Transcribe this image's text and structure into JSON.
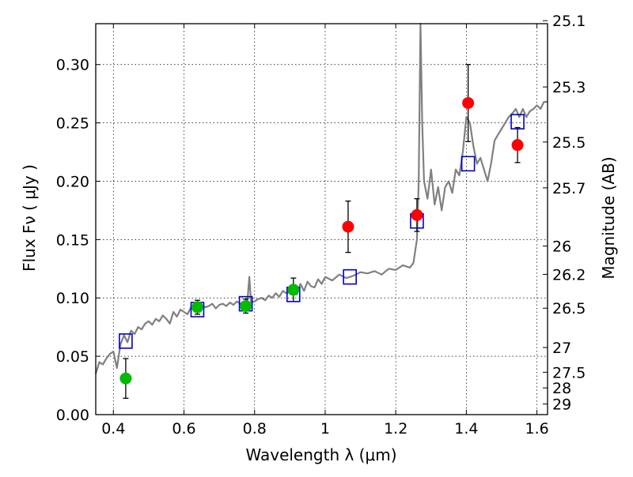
{
  "chart_data": {
    "type": "scatter",
    "xlabel": "Wavelength  λ (μm)",
    "ylabel": "Flux  Fν  ( μJy )",
    "ylabel_right": "Magnitude (AB)",
    "xlim": [
      0.35,
      1.63
    ],
    "ylim": [
      0.0,
      0.335
    ],
    "grid": true,
    "x_ticks": [
      {
        "value": 0.4,
        "label": "0.4"
      },
      {
        "value": 0.6,
        "label": "0.6"
      },
      {
        "value": 0.8,
        "label": "0.8"
      },
      {
        "value": 1.0,
        "label": "1"
      },
      {
        "value": 1.2,
        "label": "1.2"
      },
      {
        "value": 1.4,
        "label": "1.4"
      },
      {
        "value": 1.6,
        "label": "1.6"
      }
    ],
    "y_ticks": [
      {
        "value": 0.0,
        "label": "0.00"
      },
      {
        "value": 0.05,
        "label": "0.05"
      },
      {
        "value": 0.1,
        "label": "0.10"
      },
      {
        "value": 0.15,
        "label": "0.15"
      },
      {
        "value": 0.2,
        "label": "0.20"
      },
      {
        "value": 0.25,
        "label": "0.25"
      },
      {
        "value": 0.3,
        "label": "0.30"
      }
    ],
    "right_ticks": [
      {
        "label": "25.1",
        "flux": 0.3376
      },
      {
        "label": "25.3",
        "flux": 0.2808
      },
      {
        "label": "25.5",
        "flux": 0.2336
      },
      {
        "label": "25.7",
        "flux": 0.1943
      },
      {
        "label": "26",
        "flux": 0.1445
      },
      {
        "label": "26.2",
        "flux": 0.1202
      },
      {
        "label": "26.5",
        "flux": 0.0912
      },
      {
        "label": "27",
        "flux": 0.0575
      },
      {
        "label": "27.5",
        "flux": 0.0363
      },
      {
        "label": "28",
        "flux": 0.0229
      },
      {
        "label": "29",
        "flux": 0.0091
      }
    ],
    "colors": {
      "spectrum": "#808080",
      "model_points": "#0000cc",
      "observed_green": "#00bb00",
      "observed_red": "#ff0000",
      "errorbar": "#000000"
    },
    "series": [
      {
        "kind": "spectrum",
        "x": [
          0.35,
          0.36,
          0.37,
          0.38,
          0.39,
          0.4,
          0.41,
          0.42,
          0.43,
          0.44,
          0.45,
          0.46,
          0.47,
          0.48,
          0.49,
          0.5,
          0.51,
          0.52,
          0.53,
          0.54,
          0.55,
          0.56,
          0.57,
          0.58,
          0.59,
          0.6,
          0.61,
          0.62,
          0.63,
          0.64,
          0.65,
          0.66,
          0.67,
          0.68,
          0.69,
          0.7,
          0.71,
          0.72,
          0.73,
          0.74,
          0.75,
          0.76,
          0.77,
          0.78,
          0.785,
          0.79,
          0.8,
          0.81,
          0.82,
          0.83,
          0.84,
          0.85,
          0.86,
          0.87,
          0.88,
          0.89,
          0.9,
          0.91,
          0.92,
          0.93,
          0.94,
          0.95,
          0.96,
          0.97,
          0.98,
          0.99,
          1.0,
          1.02,
          1.04,
          1.06,
          1.08,
          1.1,
          1.12,
          1.14,
          1.16,
          1.18,
          1.2,
          1.22,
          1.24,
          1.25,
          1.26,
          1.265,
          1.27,
          1.275,
          1.28,
          1.29,
          1.3,
          1.31,
          1.32,
          1.33,
          1.34,
          1.35,
          1.36,
          1.37,
          1.38,
          1.39,
          1.4,
          1.41,
          1.42,
          1.43,
          1.44,
          1.45,
          1.46,
          1.47,
          1.48,
          1.49,
          1.5,
          1.51,
          1.52,
          1.53,
          1.54,
          1.55,
          1.56,
          1.57,
          1.58,
          1.59,
          1.6,
          1.61,
          1.62,
          1.63
        ],
        "y": [
          0.035,
          0.045,
          0.043,
          0.048,
          0.052,
          0.054,
          0.04,
          0.06,
          0.068,
          0.062,
          0.072,
          0.069,
          0.075,
          0.073,
          0.078,
          0.08,
          0.077,
          0.082,
          0.08,
          0.085,
          0.082,
          0.078,
          0.088,
          0.084,
          0.09,
          0.088,
          0.086,
          0.092,
          0.09,
          0.093,
          0.094,
          0.092,
          0.093,
          0.095,
          0.091,
          0.094,
          0.095,
          0.093,
          0.096,
          0.094,
          0.097,
          0.095,
          0.096,
          0.098,
          0.118,
          0.096,
          0.097,
          0.099,
          0.1,
          0.098,
          0.102,
          0.1,
          0.104,
          0.101,
          0.106,
          0.104,
          0.105,
          0.108,
          0.103,
          0.112,
          0.106,
          0.114,
          0.11,
          0.109,
          0.116,
          0.112,
          0.118,
          0.115,
          0.12,
          0.117,
          0.119,
          0.122,
          0.121,
          0.123,
          0.12,
          0.125,
          0.124,
          0.128,
          0.126,
          0.13,
          0.15,
          0.2,
          0.34,
          0.25,
          0.2,
          0.185,
          0.21,
          0.18,
          0.195,
          0.175,
          0.195,
          0.2,
          0.19,
          0.21,
          0.205,
          0.225,
          0.255,
          0.25,
          0.23,
          0.215,
          0.22,
          0.21,
          0.2,
          0.215,
          0.235,
          0.24,
          0.245,
          0.25,
          0.255,
          0.258,
          0.262,
          0.255,
          0.262,
          0.255,
          0.26,
          0.262,
          0.265,
          0.262,
          0.268,
          0.268
        ]
      },
      {
        "kind": "model",
        "x": [
          0.435,
          0.638,
          0.775,
          0.91,
          1.07,
          1.26,
          1.405,
          1.545
        ],
        "y": [
          0.063,
          0.09,
          0.095,
          0.103,
          0.118,
          0.166,
          0.215,
          0.251
        ]
      },
      {
        "kind": "observed-green",
        "x": [
          0.435,
          0.638,
          0.775,
          0.91
        ],
        "y": [
          0.031,
          0.092,
          0.093,
          0.107
        ],
        "err": [
          0.017,
          0.006,
          0.006,
          0.01
        ]
      },
      {
        "kind": "observed-red",
        "x": [
          1.065,
          1.26,
          1.405,
          1.545
        ],
        "y": [
          0.161,
          0.171,
          0.267,
          0.231
        ],
        "err": [
          0.022,
          0.014,
          0.033,
          0.015
        ]
      }
    ]
  }
}
